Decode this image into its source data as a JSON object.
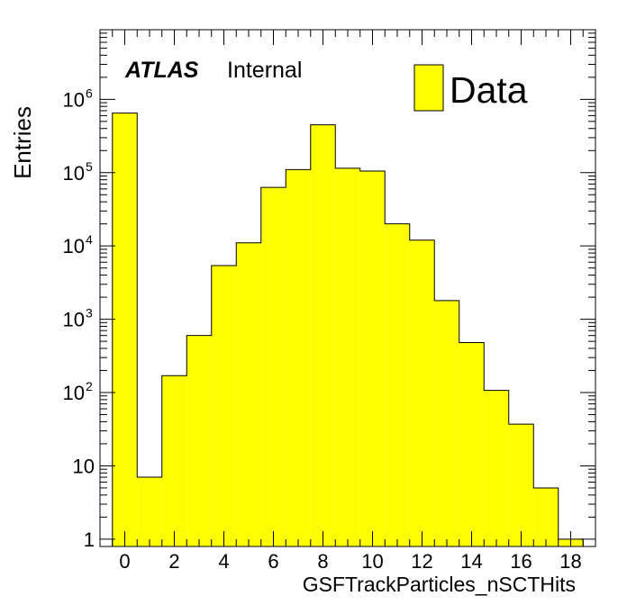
{
  "chart_data": {
    "type": "bar",
    "xlabel": "GSFTrackParticles_nSCTHits",
    "ylabel": "Entries",
    "ylog": true,
    "xlim": [
      -1,
      19
    ],
    "ylim_log10": [
      -0.1,
      6.95
    ],
    "bin_width": 1,
    "x": [
      0,
      1,
      2,
      3,
      4,
      5,
      6,
      7,
      8,
      9,
      10,
      11,
      12,
      13,
      14,
      15,
      16,
      17,
      18
    ],
    "values": [
      650000,
      7,
      170,
      600,
      5400,
      11000,
      63000,
      110000,
      450000,
      115000,
      105000,
      20000,
      12000,
      1800,
      480,
      107,
      37,
      5,
      1
    ],
    "x_tick_labels": [
      "0",
      "2",
      "4",
      "6",
      "8",
      "10",
      "12",
      "14",
      "16",
      "18"
    ],
    "y_tick_labels": [
      {
        "base": "1",
        "exp": ""
      },
      {
        "base": "10",
        "exp": ""
      },
      {
        "base": "10",
        "exp": "2"
      },
      {
        "base": "10",
        "exp": "3"
      },
      {
        "base": "10",
        "exp": "4"
      },
      {
        "base": "10",
        "exp": "5"
      },
      {
        "base": "10",
        "exp": "6"
      }
    ],
    "fill_color": "#ffff00",
    "line_color": "#000000",
    "legend": {
      "position": "top-right",
      "entries": [
        "Data"
      ]
    },
    "annotation": {
      "atlas": "ATLAS",
      "status": "Internal"
    }
  }
}
